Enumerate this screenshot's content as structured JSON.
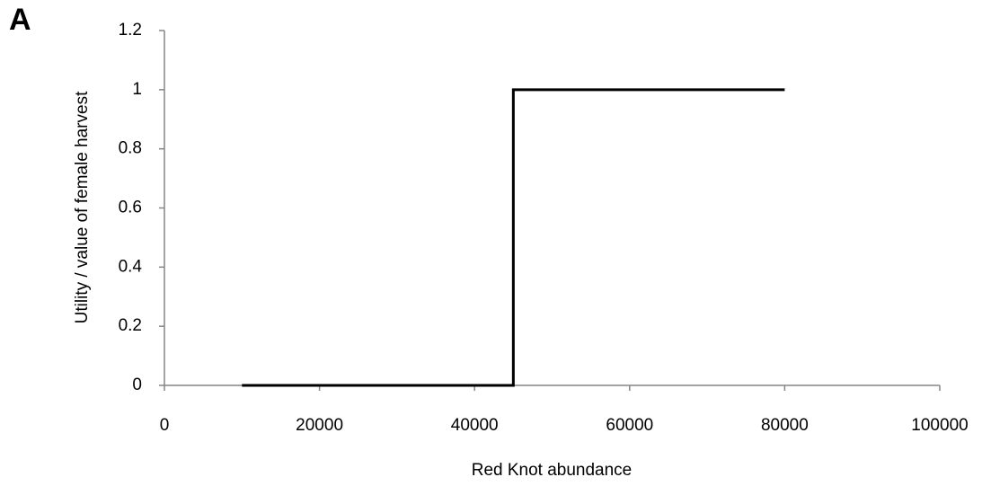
{
  "chart_data": {
    "type": "line",
    "annotation": "A",
    "xlabel": "Red Knot abundance",
    "ylabel": "Utility / value of female harvest",
    "x": [
      10000,
      45000,
      45000,
      80000
    ],
    "values": [
      0,
      0,
      1,
      1
    ],
    "color": "#000000",
    "xlim": [
      0,
      100000
    ],
    "xticks": [
      0,
      20000,
      40000,
      60000,
      80000,
      100000
    ],
    "ylim": [
      0,
      1.2
    ],
    "yticks": [
      0,
      0.2,
      0.4,
      0.6,
      0.8,
      1,
      1.2
    ],
    "grid": false
  }
}
